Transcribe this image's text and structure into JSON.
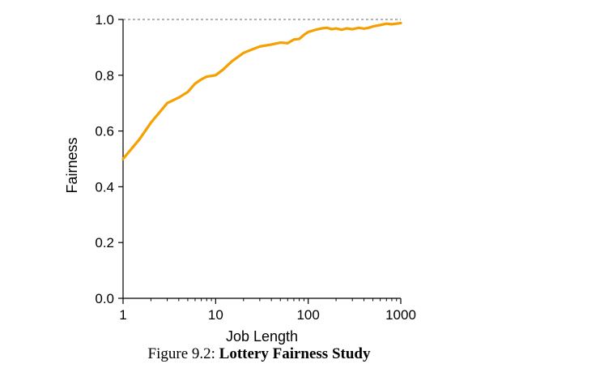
{
  "chart_data": {
    "type": "line",
    "xscale": "log",
    "xlim": [
      1,
      1000
    ],
    "ylim": [
      0,
      1.0
    ],
    "xlabel": "Job Length",
    "ylabel": "Fairness",
    "x_ticks": [
      "1",
      "10",
      "100",
      "1000"
    ],
    "y_ticks": [
      "0.0",
      "0.2",
      "0.4",
      "0.6",
      "0.8",
      "1.0"
    ],
    "reference_line": {
      "y": 1.0,
      "style": "dashed",
      "color": "#666666"
    },
    "series": [
      {
        "color": "#F5A000",
        "x": [
          1,
          1.5,
          2,
          3,
          4,
          5,
          6,
          7,
          8,
          10,
          12,
          15,
          20,
          25,
          30,
          40,
          50,
          60,
          70,
          80,
          90,
          100,
          120,
          140,
          160,
          180,
          200,
          230,
          260,
          300,
          350,
          400,
          450,
          500,
          600,
          700,
          800,
          900,
          1000
        ],
        "y": [
          0.5,
          0.57,
          0.63,
          0.7,
          0.72,
          0.74,
          0.77,
          0.785,
          0.795,
          0.8,
          0.82,
          0.85,
          0.88,
          0.893,
          0.903,
          0.91,
          0.917,
          0.915,
          0.928,
          0.93,
          0.945,
          0.955,
          0.963,
          0.968,
          0.97,
          0.965,
          0.968,
          0.963,
          0.968,
          0.965,
          0.97,
          0.967,
          0.97,
          0.975,
          0.98,
          0.985,
          0.983,
          0.985,
          0.987
        ]
      }
    ]
  },
  "caption": {
    "prefix": "Figure 9.2: ",
    "title": "Lottery Fairness Study"
  }
}
